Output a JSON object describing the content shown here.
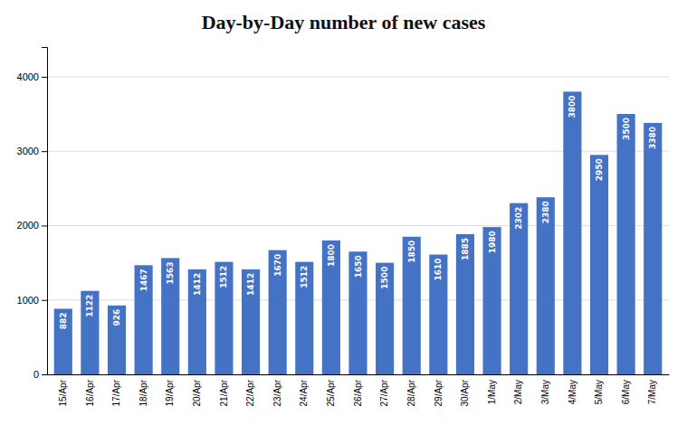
{
  "chart_data": {
    "type": "bar",
    "title": "Day-by-Day number of new cases",
    "categories": [
      "15/Apr",
      "16/Apr",
      "17/Apr",
      "18/Apr",
      "19/Apr",
      "20/Apr",
      "21/Apr",
      "22/Apr",
      "23/Apr",
      "24/Apr",
      "25/Apr",
      "26/Apr",
      "27/Apr",
      "28/Apr",
      "29/Apr",
      "30/Apr",
      "1/May",
      "2/May",
      "3/May",
      "4/May",
      "5/May",
      "6/May",
      "7/May"
    ],
    "values": [
      882,
      1122,
      926,
      1467,
      1563,
      1412,
      1512,
      1412,
      1670,
      1512,
      1800,
      1650,
      1500,
      1850,
      1610,
      1885,
      1980,
      2302,
      2380,
      3800,
      2950,
      3500,
      3380
    ],
    "color": "#4472C4",
    "ylim": [
      0,
      4400
    ],
    "yticks": [
      0,
      1000,
      2000,
      3000,
      4000
    ],
    "grid": true,
    "data_labels": true
  }
}
